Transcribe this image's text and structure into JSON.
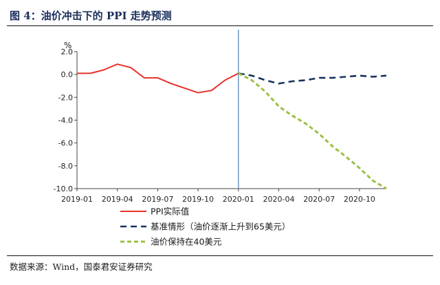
{
  "header": {
    "title": "图 4：油价冲击下的 PPI 走势预测"
  },
  "footer": {
    "source": "数据来源：Wind，国泰君安证券研究"
  },
  "chart_data": {
    "type": "line",
    "title": "图 4：油价冲击下的 PPI 走势预测",
    "ylabel": "%",
    "ylim": [
      -10,
      2
    ],
    "yticks": [
      2,
      0,
      -2,
      -4,
      -6,
      -8,
      -10
    ],
    "ytick_labels": [
      "2.0",
      "0.0",
      "-2.0",
      "-4.0",
      "-6.0",
      "-8.0",
      "-10.0"
    ],
    "xlim": [
      "2019-01",
      "2020-12"
    ],
    "xtick_labels": [
      "2019-01",
      "2019-04",
      "2019-07",
      "2019-10",
      "2020-01",
      "2020-04",
      "2020-07",
      "2020-10"
    ],
    "vline_x": "2020-01",
    "legend_position": "bottom",
    "grid": false,
    "series": [
      {
        "name": "PPI实际值",
        "color": "#e8302a",
        "style": "solid",
        "x": [
          "2019-01",
          "2019-02",
          "2019-03",
          "2019-04",
          "2019-05",
          "2019-06",
          "2019-07",
          "2019-08",
          "2019-09",
          "2019-10",
          "2019-11",
          "2019-12",
          "2020-01"
        ],
        "values": [
          0.1,
          0.1,
          0.4,
          0.9,
          0.6,
          -0.3,
          -0.3,
          -0.8,
          -1.2,
          -1.6,
          -1.4,
          -0.5,
          0.1
        ]
      },
      {
        "name": "基准情形（油价逐渐上升到65美元）",
        "color": "#17325e",
        "style": "dashed",
        "x": [
          "2020-01",
          "2020-02",
          "2020-03",
          "2020-04",
          "2020-05",
          "2020-06",
          "2020-07",
          "2020-08",
          "2020-09",
          "2020-10",
          "2020-11",
          "2020-12"
        ],
        "values": [
          0.1,
          -0.1,
          -0.5,
          -0.8,
          -0.6,
          -0.5,
          -0.3,
          -0.3,
          -0.2,
          -0.1,
          -0.2,
          -0.1
        ]
      },
      {
        "name": "油价保持在40美元",
        "color": "#9ac143",
        "style": "dashed",
        "x": [
          "2020-01",
          "2020-02",
          "2020-03",
          "2020-04",
          "2020-05",
          "2020-06",
          "2020-07",
          "2020-08",
          "2020-09",
          "2020-10",
          "2020-11",
          "2020-12"
        ],
        "values": [
          0.1,
          -0.5,
          -1.5,
          -2.8,
          -3.6,
          -4.3,
          -5.2,
          -6.3,
          -7.2,
          -8.2,
          -9.3,
          -10.0
        ]
      }
    ]
  }
}
